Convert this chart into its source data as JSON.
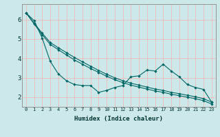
{
  "xlabel": "Humidex (Indice chaleur)",
  "bg_color": "#cce8e8",
  "grid_color": "#f0b8b8",
  "line_color": "#006666",
  "x_data": [
    0,
    1,
    2,
    3,
    4,
    5,
    6,
    7,
    8,
    9,
    10,
    11,
    12,
    13,
    14,
    15,
    16,
    17,
    18,
    19,
    20,
    21,
    22,
    23
  ],
  "line1": [
    6.35,
    5.95,
    5.05,
    3.85,
    3.2,
    2.85,
    2.65,
    2.6,
    2.6,
    2.25,
    2.35,
    2.5,
    2.6,
    3.05,
    3.1,
    3.4,
    3.35,
    3.7,
    3.35,
    3.05,
    2.65,
    2.5,
    2.4,
    1.75
  ],
  "line2": [
    6.35,
    5.82,
    5.3,
    4.82,
    4.55,
    4.3,
    4.05,
    3.82,
    3.6,
    3.38,
    3.18,
    3.0,
    2.85,
    2.72,
    2.62,
    2.52,
    2.42,
    2.35,
    2.25,
    2.18,
    2.1,
    2.02,
    1.92,
    1.75
  ],
  "line3": [
    6.35,
    5.78,
    5.22,
    4.72,
    4.45,
    4.18,
    3.92,
    3.7,
    3.48,
    3.28,
    3.08,
    2.9,
    2.75,
    2.62,
    2.52,
    2.42,
    2.32,
    2.25,
    2.15,
    2.08,
    2.0,
    1.92,
    1.82,
    1.65
  ],
  "ylim": [
    1.5,
    6.8
  ],
  "xlim": [
    -0.5,
    23.5
  ],
  "yticks": [
    2,
    3,
    4,
    5,
    6
  ],
  "xticks": [
    0,
    1,
    2,
    3,
    4,
    5,
    6,
    7,
    8,
    9,
    10,
    11,
    12,
    13,
    14,
    15,
    16,
    17,
    18,
    19,
    20,
    21,
    22,
    23
  ],
  "xlabel_fontsize": 6.5,
  "tick_fontsize_x": 5.0,
  "tick_fontsize_y": 6.5
}
